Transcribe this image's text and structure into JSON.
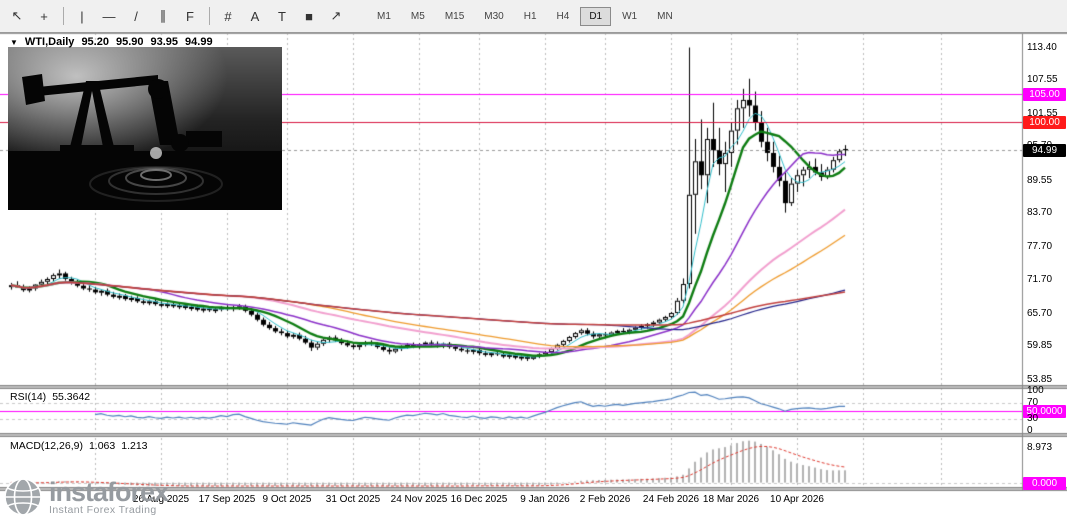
{
  "ui": {
    "toolbar": {
      "tools": [
        {
          "name": "cursor",
          "glyph": "↖"
        },
        {
          "name": "crosshair",
          "glyph": "+"
        },
        {
          "name": "sep",
          "glyph": ""
        },
        {
          "name": "vertical-line",
          "glyph": "|"
        },
        {
          "name": "horizontal-line",
          "glyph": "—"
        },
        {
          "name": "trendline",
          "glyph": "/"
        },
        {
          "name": "equidistant-channel",
          "glyph": "∥"
        },
        {
          "name": "fibonacci",
          "glyph": "F"
        },
        {
          "name": "sep",
          "glyph": ""
        },
        {
          "name": "grid",
          "glyph": "#"
        },
        {
          "name": "text",
          "glyph": "A"
        },
        {
          "name": "text-label",
          "glyph": "T"
        },
        {
          "name": "shapes",
          "glyph": "■"
        },
        {
          "name": "arrow-tools",
          "glyph": "↗"
        }
      ],
      "timeframes": [
        {
          "label": "M1",
          "active": false
        },
        {
          "label": "M5",
          "active": false
        },
        {
          "label": "M15",
          "active": false
        },
        {
          "label": "M30",
          "active": false
        },
        {
          "label": "H1",
          "active": false
        },
        {
          "label": "H4",
          "active": false
        },
        {
          "label": "D1",
          "active": true
        },
        {
          "label": "W1",
          "active": false
        },
        {
          "label": "MN",
          "active": false
        }
      ]
    },
    "chart_header": {
      "dropdown": "▼",
      "symbol": "WTI,Daily",
      "open": "95.20",
      "high": "95.90",
      "low": "93.95",
      "close": "94.99"
    },
    "rsi_header": {
      "label": "RSI(14)",
      "value": "55.3642"
    },
    "macd_header": {
      "label": "MACD(12,26,9)",
      "value1": "1.063",
      "value2": "1.213"
    },
    "logo": {
      "brand": "instaforex",
      "tagline": "Instant Forex Trading"
    }
  },
  "chart_data": {
    "type": "candlestick",
    "symbol": "WTI",
    "timeframe": "Daily",
    "title": "WTI,Daily",
    "last_ohlc": {
      "open": 95.2,
      "high": 95.9,
      "low": 93.95,
      "close": 94.99
    },
    "ylim": [
      52.9,
      116.0
    ],
    "y_ticks": [
      113.4,
      107.55,
      101.55,
      95.7,
      89.55,
      83.7,
      77.7,
      71.7,
      65.7,
      59.85,
      53.85
    ],
    "x_ticks": [
      {
        "i": 25,
        "t": "26 Aug 2025"
      },
      {
        "i": 36,
        "t": "17 Sep 2025"
      },
      {
        "i": 46,
        "t": "9 Oct 2025"
      },
      {
        "i": 57,
        "t": "31 Oct 2025"
      },
      {
        "i": 68,
        "t": "24 Nov 2025"
      },
      {
        "i": 78,
        "t": "16 Dec 2025"
      },
      {
        "i": 89,
        "t": "9 Jan 2026"
      },
      {
        "i": 99,
        "t": "2 Feb 2026"
      },
      {
        "i": 110,
        "t": "24 Feb 2026"
      },
      {
        "i": 120,
        "t": "18 Mar 2026"
      },
      {
        "i": 131,
        "t": "10 Apr 2026"
      }
    ],
    "grid_i": [
      14,
      25,
      36,
      46,
      57,
      68,
      78,
      89,
      99,
      110,
      120,
      131,
      142,
      155
    ],
    "hlines": [
      {
        "price": 105.0,
        "label": "105.00",
        "color": "#ff00ff",
        "badge": "#ff00ff"
      },
      {
        "price": 100.0,
        "label": "100.00",
        "color": "#d81540",
        "badge": "#ff1a1a"
      }
    ],
    "last_price": {
      "value": 94.99,
      "label": "94.99",
      "badge": "#000000"
    },
    "moving_averages": [
      {
        "period": 5,
        "color": "#33bfcc",
        "width": 1
      },
      {
        "period": 10,
        "color": "#0e7d12",
        "width": 2.4
      },
      {
        "period": 20,
        "color": "#8b30c9",
        "width": 1.5
      },
      {
        "period": 40,
        "color": "#f2a0cf",
        "width": 2
      },
      {
        "period": 50,
        "color": "#ef9b2d",
        "width": 1.3
      },
      {
        "period": 100,
        "color": "#26268c",
        "width": 1.2
      },
      {
        "period": 200,
        "color": "#c2403e",
        "width": 1.5
      }
    ],
    "rsi": {
      "period": 14,
      "current": 55.3642,
      "line_color": "#4f81bd",
      "levels": [
        {
          "v": 100,
          "t": "100"
        },
        {
          "v": 70,
          "t": "70"
        },
        {
          "v": 50,
          "t": "50.0000",
          "badge": "#ff00ff"
        },
        {
          "v": 30,
          "t": "30"
        },
        {
          "v": 0,
          "t": "0"
        }
      ]
    },
    "macd": {
      "fast": 12,
      "slow": 26,
      "signal": 9,
      "current": 1.063,
      "current_signal": 1.213,
      "top_tick": {
        "v": 8.973,
        "t": "8.973"
      },
      "zero_tick": {
        "t": "0.000",
        "badge": "#ff00ff"
      },
      "hist_color": "#b2b2b2",
      "signal_color": "#e03c32"
    },
    "candles": [
      [
        70.5,
        71.2,
        70.0,
        70.8
      ],
      [
        70.8,
        71.5,
        70.3,
        70.4
      ],
      [
        70.4,
        70.9,
        69.6,
        69.9
      ],
      [
        69.9,
        70.6,
        69.5,
        70.2
      ],
      [
        70.2,
        71.0,
        69.8,
        70.9
      ],
      [
        70.9,
        71.8,
        70.5,
        71.4
      ],
      [
        71.4,
        72.2,
        71.0,
        71.9
      ],
      [
        71.9,
        72.9,
        71.5,
        72.6
      ],
      [
        72.6,
        73.6,
        71.9,
        72.9
      ],
      [
        72.9,
        73.2,
        71.6,
        71.9
      ],
      [
        71.9,
        72.3,
        70.9,
        71.3
      ],
      [
        71.3,
        71.8,
        70.4,
        70.7
      ],
      [
        70.7,
        71.2,
        69.9,
        70.2
      ],
      [
        70.2,
        70.8,
        69.6,
        70.0
      ],
      [
        70.0,
        70.5,
        69.2,
        69.5
      ],
      [
        69.5,
        70.1,
        68.9,
        69.8
      ],
      [
        69.8,
        70.2,
        68.8,
        69.1
      ],
      [
        69.1,
        69.6,
        68.4,
        68.7
      ],
      [
        68.7,
        69.3,
        68.2,
        68.9
      ],
      [
        68.9,
        69.2,
        68.0,
        68.3
      ],
      [
        68.3,
        68.9,
        67.8,
        68.5
      ],
      [
        68.5,
        68.8,
        67.6,
        67.9
      ],
      [
        67.9,
        68.4,
        67.3,
        67.6
      ],
      [
        67.6,
        68.2,
        67.2,
        67.9
      ],
      [
        67.9,
        68.3,
        67.1,
        67.4
      ],
      [
        67.4,
        67.9,
        66.8,
        67.1
      ],
      [
        67.1,
        67.7,
        66.7,
        67.4
      ],
      [
        67.4,
        67.8,
        66.7,
        67.0
      ],
      [
        67.0,
        67.5,
        66.5,
        67.2
      ],
      [
        67.2,
        67.6,
        66.4,
        66.7
      ],
      [
        66.7,
        67.2,
        66.2,
        66.9
      ],
      [
        66.9,
        67.3,
        66.1,
        66.4
      ],
      [
        66.4,
        66.9,
        65.9,
        66.6
      ],
      [
        66.6,
        67.0,
        66.0,
        66.3
      ],
      [
        66.3,
        66.8,
        65.8,
        66.5
      ],
      [
        66.5,
        67.0,
        66.1,
        66.8
      ],
      [
        66.8,
        67.2,
        66.2,
        66.5
      ],
      [
        66.5,
        67.1,
        66.1,
        66.9
      ],
      [
        66.9,
        67.4,
        66.4,
        67.0
      ],
      [
        67.0,
        67.3,
        65.9,
        66.2
      ],
      [
        66.2,
        66.6,
        65.2,
        65.5
      ],
      [
        65.5,
        65.9,
        64.3,
        64.6
      ],
      [
        64.6,
        65.0,
        63.4,
        63.7
      ],
      [
        63.7,
        64.2,
        62.8,
        63.1
      ],
      [
        63.1,
        63.5,
        62.2,
        62.5
      ],
      [
        62.5,
        63.0,
        61.8,
        62.2
      ],
      [
        62.2,
        62.6,
        61.3,
        61.6
      ],
      [
        61.6,
        62.2,
        61.2,
        61.9
      ],
      [
        61.9,
        62.3,
        60.9,
        61.2
      ],
      [
        61.2,
        61.7,
        60.2,
        60.5
      ],
      [
        60.5,
        61.0,
        59.0,
        59.6
      ],
      [
        59.6,
        60.6,
        59.2,
        60.3
      ],
      [
        60.3,
        61.2,
        59.9,
        61.0
      ],
      [
        61.0,
        61.7,
        60.5,
        61.4
      ],
      [
        61.4,
        61.8,
        60.6,
        60.9
      ],
      [
        60.9,
        61.3,
        60.1,
        60.4
      ],
      [
        60.4,
        60.9,
        59.7,
        60.0
      ],
      [
        60.0,
        60.4,
        59.3,
        59.7
      ],
      [
        59.7,
        60.3,
        59.2,
        60.1
      ],
      [
        60.1,
        60.8,
        59.8,
        60.5
      ],
      [
        60.5,
        60.9,
        59.9,
        60.2
      ],
      [
        60.2,
        60.6,
        59.4,
        59.7
      ],
      [
        59.7,
        60.1,
        58.9,
        59.2
      ],
      [
        59.2,
        59.7,
        58.4,
        58.9
      ],
      [
        58.9,
        59.6,
        58.6,
        59.4
      ],
      [
        59.4,
        60.0,
        59.0,
        59.8
      ],
      [
        59.8,
        60.4,
        59.4,
        60.1
      ],
      [
        60.1,
        60.5,
        59.5,
        59.9
      ],
      [
        59.9,
        60.4,
        59.4,
        60.2
      ],
      [
        60.2,
        60.7,
        59.8,
        60.5
      ],
      [
        60.5,
        60.9,
        59.9,
        60.3
      ],
      [
        60.3,
        60.7,
        59.6,
        60.0
      ],
      [
        60.0,
        60.5,
        59.5,
        60.3
      ],
      [
        60.3,
        60.6,
        59.4,
        59.7
      ],
      [
        59.7,
        60.1,
        59.0,
        59.4
      ],
      [
        59.4,
        59.8,
        58.8,
        59.1
      ],
      [
        59.1,
        59.5,
        58.5,
        58.9
      ],
      [
        58.9,
        59.4,
        58.4,
        59.2
      ],
      [
        59.2,
        59.5,
        58.2,
        58.6
      ],
      [
        58.6,
        59.0,
        58.0,
        58.3
      ],
      [
        58.3,
        58.8,
        57.9,
        58.6
      ],
      [
        58.6,
        59.0,
        58.1,
        58.4
      ],
      [
        58.4,
        58.7,
        57.7,
        58.0
      ],
      [
        58.0,
        58.5,
        57.6,
        58.3
      ],
      [
        58.3,
        58.6,
        57.5,
        57.8
      ],
      [
        57.8,
        58.2,
        57.3,
        58.0
      ],
      [
        58.0,
        58.4,
        57.2,
        57.6
      ],
      [
        57.6,
        58.2,
        57.4,
        58.0
      ],
      [
        58.0,
        58.6,
        57.7,
        58.4
      ],
      [
        58.4,
        59.0,
        58.1,
        58.8
      ],
      [
        58.8,
        59.6,
        58.5,
        59.4
      ],
      [
        59.4,
        60.3,
        59.1,
        60.1
      ],
      [
        60.1,
        61.0,
        59.8,
        60.8
      ],
      [
        60.8,
        61.7,
        60.5,
        61.5
      ],
      [
        61.5,
        62.4,
        61.2,
        62.2
      ],
      [
        62.2,
        63.0,
        61.9,
        62.7
      ],
      [
        62.7,
        63.1,
        61.8,
        62.1
      ],
      [
        62.1,
        62.5,
        61.2,
        61.6
      ],
      [
        61.6,
        62.2,
        61.3,
        62.0
      ],
      [
        62.0,
        62.4,
        61.4,
        61.8
      ],
      [
        61.8,
        62.5,
        61.5,
        62.3
      ],
      [
        62.3,
        62.8,
        61.9,
        62.6
      ],
      [
        62.6,
        63.1,
        62.1,
        62.4
      ],
      [
        62.4,
        63.0,
        62.0,
        62.8
      ],
      [
        62.8,
        63.4,
        62.4,
        63.2
      ],
      [
        63.2,
        63.8,
        62.8,
        63.5
      ],
      [
        63.5,
        64.0,
        63.0,
        63.8
      ],
      [
        63.8,
        64.4,
        63.3,
        64.1
      ],
      [
        64.1,
        64.8,
        63.8,
        64.6
      ],
      [
        64.6,
        65.3,
        64.2,
        65.1
      ],
      [
        65.1,
        66.0,
        64.8,
        65.8
      ],
      [
        65.8,
        68.5,
        65.5,
        68.0
      ],
      [
        68.0,
        72.0,
        67.5,
        71.0
      ],
      [
        71.0,
        113.4,
        70.2,
        87.0
      ],
      [
        87.0,
        97.0,
        80.0,
        93.0
      ],
      [
        93.0,
        100.5,
        88.0,
        90.5
      ],
      [
        90.5,
        99.0,
        85.5,
        97.0
      ],
      [
        97.0,
        103.5,
        92.0,
        95.0
      ],
      [
        95.0,
        99.0,
        90.5,
        92.5
      ],
      [
        92.5,
        96.5,
        87.5,
        94.5
      ],
      [
        94.5,
        100.0,
        92.0,
        98.5
      ],
      [
        98.5,
        104.0,
        96.0,
        102.5
      ],
      [
        102.5,
        106.0,
        99.0,
        104.0
      ],
      [
        104.0,
        107.8,
        101.0,
        103.0
      ],
      [
        103.0,
        105.5,
        98.5,
        100.0
      ],
      [
        100.0,
        102.0,
        95.5,
        96.5
      ],
      [
        96.5,
        99.0,
        93.0,
        94.5
      ],
      [
        94.5,
        96.5,
        91.0,
        92.0
      ],
      [
        92.0,
        94.0,
        88.5,
        89.5
      ],
      [
        89.5,
        91.0,
        83.8,
        85.5
      ],
      [
        85.5,
        90.0,
        85.0,
        89.0
      ],
      [
        89.0,
        91.5,
        87.5,
        90.5
      ],
      [
        90.5,
        92.0,
        88.5,
        91.5
      ],
      [
        91.5,
        93.0,
        90.0,
        92.0
      ],
      [
        92.0,
        93.5,
        90.5,
        91.0
      ],
      [
        91.0,
        92.5,
        89.5,
        90.2
      ],
      [
        90.2,
        92.0,
        89.8,
        91.5
      ],
      [
        91.5,
        93.8,
        91.0,
        93.2
      ],
      [
        93.2,
        95.2,
        92.8,
        94.8
      ],
      [
        95.2,
        95.9,
        93.95,
        94.99
      ]
    ]
  }
}
